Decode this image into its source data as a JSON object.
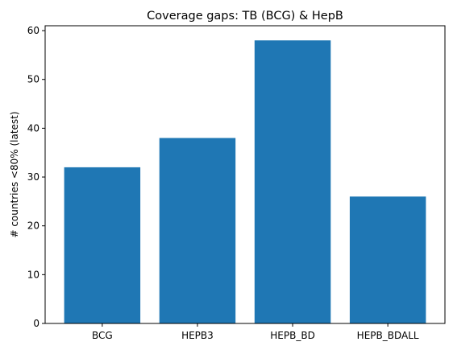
{
  "chart_data": {
    "type": "bar",
    "title": "Coverage gaps: TB (BCG) & HepB",
    "xlabel": "",
    "ylabel": "# countries <80% (latest)",
    "categories": [
      "BCG",
      "HEPB3",
      "HEPB_BD",
      "HEPB_BDALL"
    ],
    "values": [
      32,
      38,
      58,
      26
    ],
    "ylim": [
      0,
      61
    ],
    "yticks": [
      0,
      10,
      20,
      30,
      40,
      50,
      60
    ],
    "bar_color": "#1f77b4",
    "grid": false,
    "legend": "none"
  }
}
